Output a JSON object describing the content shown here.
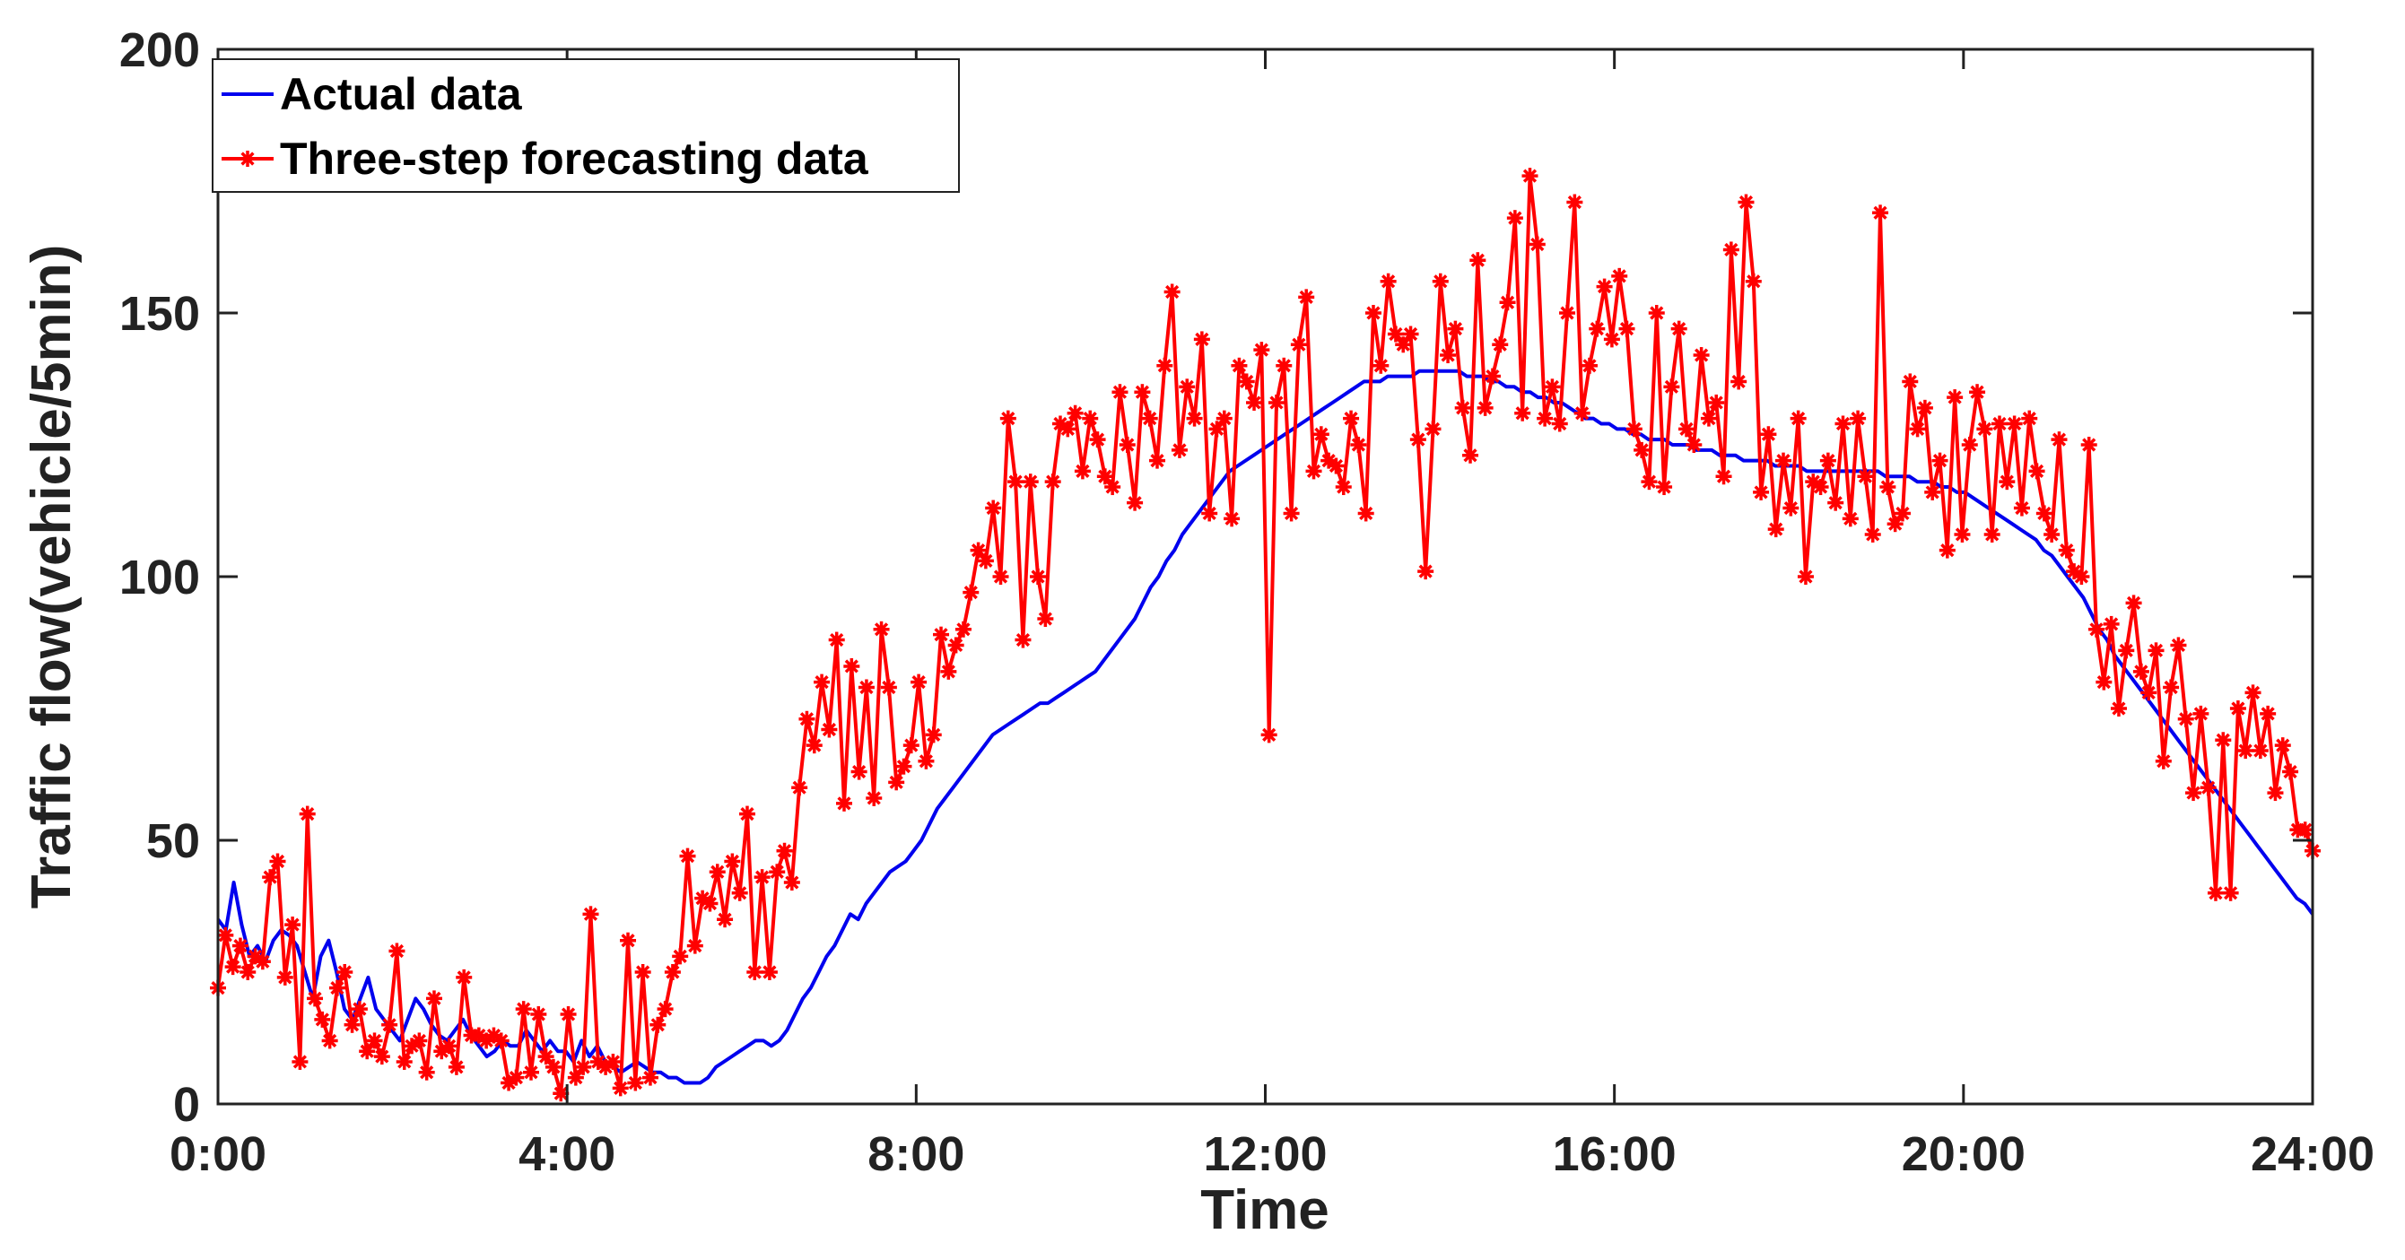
{
  "chart_data": {
    "type": "line",
    "title": "",
    "xlabel": "Time",
    "ylabel": "Traffic flow(vehicle/5min)",
    "xlim": [
      0,
      24
    ],
    "ylim": [
      0,
      200
    ],
    "x_ticks": [
      0,
      4,
      8,
      12,
      16,
      20,
      24
    ],
    "x_tick_labels": [
      "0:00",
      "4:00",
      "8:00",
      "12:00",
      "16:00",
      "20:00",
      "24:00"
    ],
    "y_ticks": [
      0,
      50,
      100,
      150,
      200
    ],
    "y_tick_labels": [
      "0",
      "50",
      "100",
      "150",
      "200"
    ],
    "grid": false,
    "legend_position": "top-left",
    "x_unit": "hours",
    "sample_interval_hours": 0.0833,
    "series": [
      {
        "name": "Actual data",
        "color": "#0000ee",
        "marker": "none",
        "values": [
          35,
          33,
          42,
          34,
          28,
          30,
          27,
          31,
          33,
          32,
          30,
          25,
          20,
          28,
          31,
          25,
          18,
          16,
          20,
          24,
          18,
          16,
          14,
          12,
          16,
          20,
          18,
          15,
          13,
          12,
          14,
          16,
          13,
          11,
          9,
          10,
          12,
          11,
          11,
          14,
          12,
          10,
          12,
          10,
          10,
          8,
          12,
          9,
          11,
          8,
          7,
          6,
          7,
          8,
          7,
          6,
          6,
          5,
          5,
          4,
          4,
          4,
          5,
          7,
          8,
          9,
          10,
          11,
          12,
          12,
          11,
          12,
          14,
          17,
          20,
          22,
          25,
          28,
          30,
          33,
          36,
          35,
          38,
          40,
          42,
          44,
          45,
          46,
          48,
          50,
          53,
          56,
          58,
          60,
          62,
          64,
          66,
          68,
          70,
          71,
          72,
          73,
          74,
          75,
          76,
          76,
          77,
          78,
          79,
          80,
          81,
          82,
          84,
          86,
          88,
          90,
          92,
          95,
          98,
          100,
          103,
          105,
          108,
          110,
          112,
          114,
          116,
          118,
          120,
          121,
          122,
          123,
          124,
          125,
          126,
          127,
          128,
          129,
          130,
          131,
          132,
          133,
          134,
          135,
          136,
          137,
          137,
          137,
          138,
          138,
          138,
          138,
          139,
          139,
          139,
          139,
          139,
          139,
          138,
          138,
          138,
          137,
          137,
          136,
          136,
          135,
          135,
          134,
          134,
          133,
          133,
          132,
          131,
          130,
          130,
          129,
          129,
          128,
          128,
          127,
          127,
          126,
          126,
          126,
          125,
          125,
          125,
          124,
          124,
          124,
          123,
          123,
          123,
          122,
          122,
          122,
          122,
          121,
          121,
          121,
          121,
          120,
          120,
          120,
          120,
          120,
          120,
          120,
          120,
          120,
          120,
          119,
          119,
          119,
          119,
          118,
          118,
          118,
          117,
          117,
          116,
          116,
          115,
          114,
          113,
          112,
          111,
          110,
          109,
          108,
          107,
          105,
          104,
          102,
          100,
          98,
          96,
          93,
          90,
          88,
          85,
          83,
          81,
          79,
          77,
          75,
          73,
          71,
          69,
          67,
          65,
          63,
          61,
          59,
          57,
          55,
          53,
          51,
          49,
          47,
          45,
          43,
          41,
          39,
          38,
          36
        ]
      },
      {
        "name": "Three-step forecasting data",
        "color": "#ff0000",
        "marker": "asterisk",
        "values": [
          22,
          32,
          26,
          30,
          25,
          28,
          27,
          43,
          46,
          24,
          34,
          8,
          55,
          20,
          16,
          12,
          22,
          25,
          15,
          18,
          10,
          12,
          9,
          15,
          29,
          8,
          11,
          12,
          6,
          20,
          10,
          11,
          7,
          24,
          13,
          13,
          12,
          13,
          12,
          4,
          5,
          18,
          6,
          17,
          9,
          7,
          2,
          17,
          5,
          7,
          36,
          8,
          7,
          8,
          3,
          31,
          4,
          25,
          5,
          15,
          18,
          25,
          28,
          47,
          30,
          39,
          38,
          44,
          35,
          46,
          40,
          55,
          25,
          43,
          25,
          44,
          48,
          42,
          60,
          73,
          68,
          80,
          71,
          88,
          57,
          83,
          63,
          79,
          58,
          90,
          79,
          61,
          64,
          68,
          80,
          65,
          70,
          89,
          82,
          87,
          90,
          97,
          105,
          103,
          113,
          100,
          130,
          118,
          88,
          118,
          100,
          92,
          118,
          129,
          128,
          131,
          120,
          130,
          126,
          119,
          117,
          135,
          125,
          114,
          135,
          130,
          122,
          140,
          154,
          124,
          136,
          130,
          145,
          112,
          128,
          130,
          111,
          140,
          137,
          133,
          143,
          70,
          133,
          140,
          112,
          144,
          153,
          120,
          127,
          122,
          121,
          117,
          130,
          125,
          112,
          150,
          140,
          156,
          146,
          144,
          146,
          126,
          101,
          128,
          156,
          142,
          147,
          132,
          123,
          160,
          132,
          138,
          144,
          152,
          168,
          131,
          176,
          163,
          130,
          136,
          129,
          150,
          171,
          131,
          140,
          147,
          155,
          145,
          157,
          147,
          128,
          124,
          118,
          150,
          117,
          136,
          147,
          128,
          125,
          142,
          130,
          133,
          119,
          162,
          137,
          171,
          156,
          116,
          127,
          109,
          122,
          113,
          130,
          100,
          118,
          117,
          122,
          114,
          129,
          111,
          130,
          119,
          108,
          169,
          117,
          110,
          112,
          137,
          128,
          132,
          116,
          122,
          105,
          134,
          108,
          125,
          135,
          128,
          108,
          129,
          118,
          129,
          113,
          130,
          120,
          112,
          108,
          126,
          105,
          101,
          100,
          125,
          90,
          80,
          91,
          75,
          86,
          95,
          82,
          78,
          86,
          65,
          79,
          87,
          73,
          59,
          74,
          60,
          40,
          69,
          40,
          75,
          67,
          78,
          67,
          74,
          59,
          68,
          63,
          52,
          52,
          48
        ]
      }
    ]
  }
}
